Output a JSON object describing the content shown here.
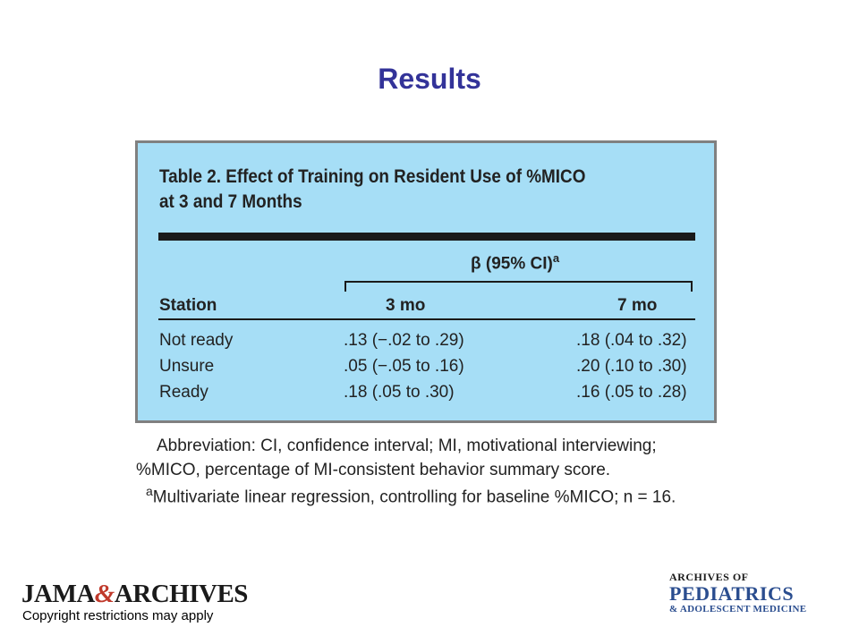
{
  "slide": {
    "title": "Results"
  },
  "table": {
    "title_line1": "Table 2. Effect of Training on Resident Use of %MICO",
    "title_line2": "at 3 and 7 Months",
    "group_header": "β (95% CI)",
    "group_header_sup": "a",
    "col_station": "Station",
    "col_3mo": "3 mo",
    "col_7mo": "7 mo",
    "rows": [
      {
        "station": "Not ready",
        "m3": ".13 (−.02 to .29)",
        "m7": ".18 (.04 to .32)"
      },
      {
        "station": "Unsure",
        "m3": ".05 (−.05 to .16)",
        "m7": ".20 (.10 to .30)"
      },
      {
        "station": "Ready",
        "m3": ".18 (.05 to .30)",
        "m7": ".16 (.05 to .28)"
      }
    ],
    "footnote_abbrev_1": "Abbreviation: CI, confidence interval; MI, motivational interviewing;",
    "footnote_abbrev_2": "%MICO, percentage of MI-consistent behavior summary score.",
    "footnote_a_marker": "a",
    "footnote_a": "Multivariate linear regression, controlling for baseline %MICO; n = 16."
  },
  "footer": {
    "logo_left_jama": "JAMA",
    "logo_left_amp": "&",
    "logo_left_archives": "ARCHIVES",
    "copyright": "Copyright restrictions may apply",
    "logo_right_line1": "ARCHIVES OF",
    "logo_right_line2": "PEDIATRICS",
    "logo_right_line3": "& ADOLESCENT MEDICINE"
  }
}
